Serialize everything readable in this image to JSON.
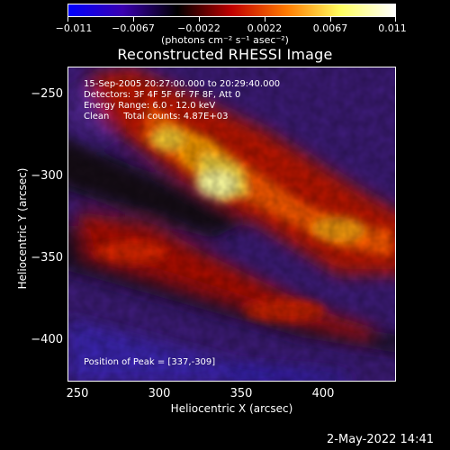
{
  "colorbar": {
    "labels": [
      "−0.011",
      "−0.0067",
      "−0.0022",
      "0.0022",
      "0.0067",
      "0.011"
    ],
    "units": "(photons cm⁻² s⁻¹ asec⁻²)"
  },
  "title": "Reconstructed RHESSI Image",
  "info": {
    "time": "15-Sep-2005 20:27:00.000 to 20:29:40.000",
    "detectors": "Detectors: 3F 4F 5F 6F 7F 8F, Att 0",
    "energy": "Energy Range: 6.0 - 12.0 keV",
    "clean": "Clean     Total counts: 4.87E+03",
    "peak": "Position of Peak = [337,-309]"
  },
  "axes": {
    "xlabel": "Heliocentric X (arcsec)",
    "ylabel": "Heliocentric Y (arcsec)",
    "xticks": [
      "250",
      "300",
      "350",
      "400"
    ],
    "yticks": [
      "−250",
      "−300",
      "−350",
      "−400"
    ]
  },
  "datestamp": "2-May-2022 14:41",
  "colors": {
    "colorbar_gradient": [
      "#0000ff",
      "#3a00b0",
      "#000000",
      "#c00000",
      "#ff7a00",
      "#ffff60",
      "#ffffff"
    ]
  }
}
